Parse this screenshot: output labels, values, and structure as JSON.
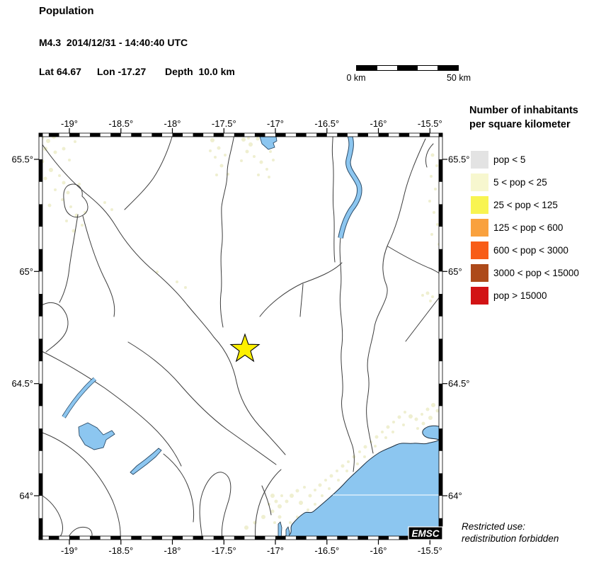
{
  "header": {
    "title": "Population",
    "event": "M4.3  2014/12/31 - 14:40:40 UTC",
    "lat": "Lat 64.67",
    "lon": "Lon -17.27",
    "depth": "Depth  10.0 km"
  },
  "scale_bar": {
    "left": "0 km",
    "right": "50 km"
  },
  "axes": {
    "lon": [
      "-19°",
      "-18.5°",
      "-18°",
      "-17.5°",
      "-17°",
      "-16.5°",
      "-16°",
      "-15.5°"
    ],
    "lat": [
      "65.5°",
      "65°",
      "64.5°",
      "64°"
    ]
  },
  "legend": {
    "title_line1": "Number of inhabitants",
    "title_line2": "per square kilometer",
    "items": [
      {
        "label": "pop < 5",
        "color": "#e3e3e3"
      },
      {
        "label": "5 < pop < 25",
        "color": "#f7f7cf"
      },
      {
        "label": "25 < pop < 125",
        "color": "#f8f451"
      },
      {
        "label": "125 < pop < 600",
        "color": "#f9a13e"
      },
      {
        "label": "600 < pop < 3000",
        "color": "#f85c17"
      },
      {
        "label": "3000 < pop < 15000",
        "color": "#ad4a1a"
      },
      {
        "label": "pop > 15000",
        "color": "#d21315"
      }
    ]
  },
  "map": {
    "logo": "EMSC",
    "epicenter_marker": "star",
    "colors": {
      "water": "#8cc6f0",
      "water_outline": "#2a4a66",
      "land": "#ffffff",
      "river_line": "#3d3d3d",
      "populated_patch": "#efefd0",
      "star_fill": "#fdf000"
    }
  },
  "footer": {
    "line1": "Restricted use:",
    "line2": "redistribution forbidden"
  }
}
